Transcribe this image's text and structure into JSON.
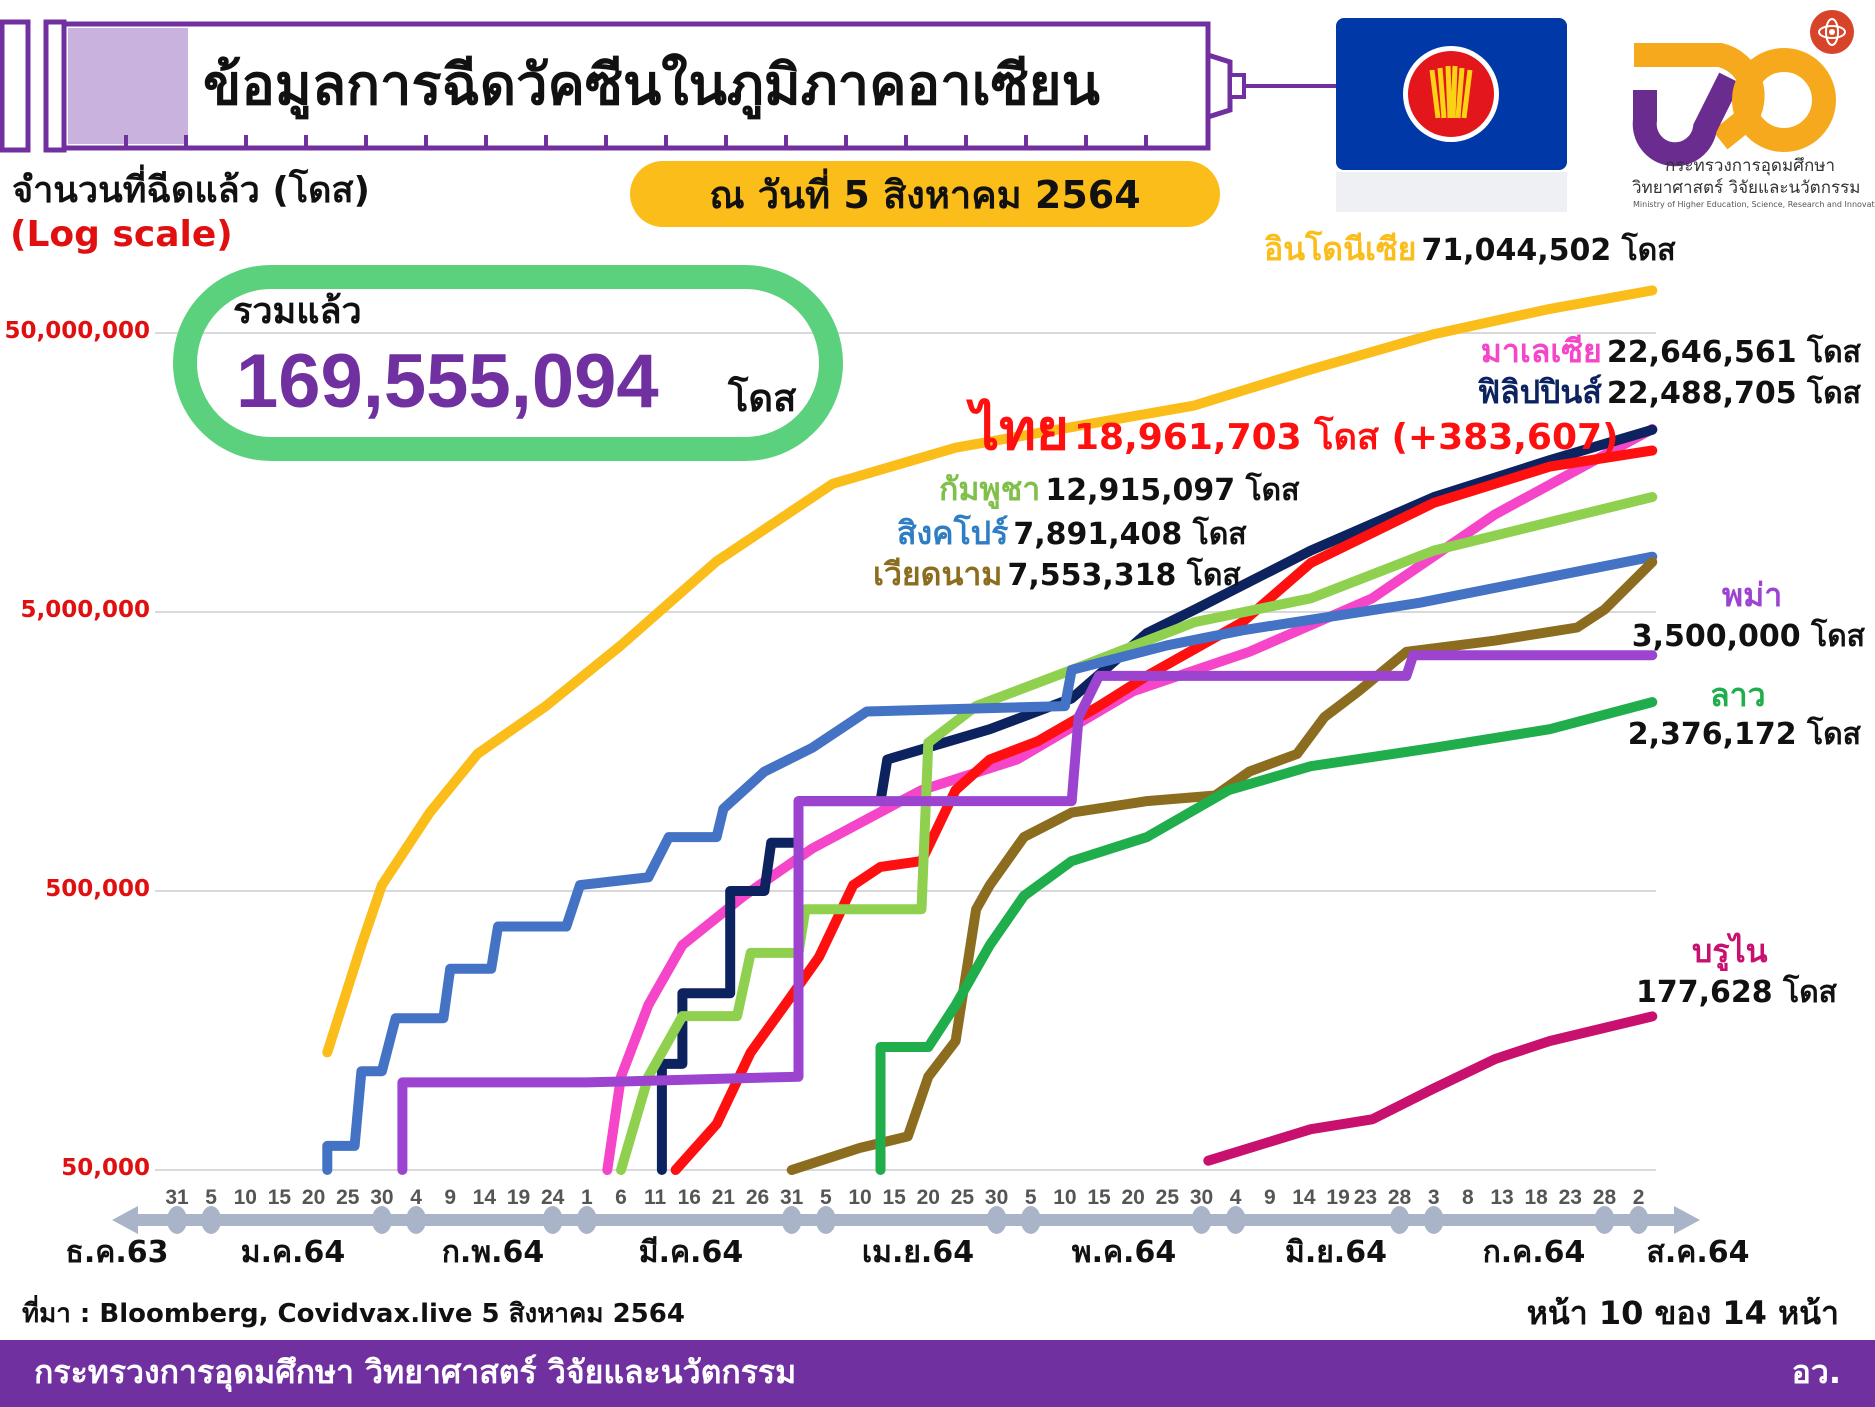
{
  "header": {
    "title": "ข้อมูลการฉีดวัคซีนในภูมิภาคอาเซียน",
    "date_label": "ณ วันที่ 5 สิงหาคม 2564"
  },
  "yaxis": {
    "title": "จำนวนที่ฉีดแล้ว (โดส)",
    "scale_note": "(Log scale)",
    "ticks": [
      {
        "value": 50000000,
        "label": "50,000,000"
      },
      {
        "value": 5000000,
        "label": "5,000,000"
      },
      {
        "value": 500000,
        "label": "500,000"
      },
      {
        "value": 50000,
        "label": "50,000"
      }
    ]
  },
  "total": {
    "label": "รวมแล้ว",
    "value": "169,555,094",
    "unit": "โดส"
  },
  "logo": {
    "ministry_th_1": "กระทรวงการอุดมศึกษา",
    "ministry_th_2": "วิทยาศาสตร์ วิจัยและนวัตกรรม",
    "ministry_en": "Ministry of Higher Education, Science, Research and Innovation"
  },
  "colors": {
    "purple": "#7030a0",
    "yellow": "#fbbd1a",
    "green_pill": "#5bd17e",
    "axis": "#aab4c8",
    "asean_blue": "#0038a8"
  },
  "chart_data": {
    "type": "line",
    "yscale": "log",
    "ylim": [
      50000,
      80000000
    ],
    "grid": true,
    "x_ticks": [
      {
        "date": "2020-12-31",
        "label": "31"
      },
      {
        "date": "2021-01-05",
        "label": "5"
      },
      {
        "date": "2021-01-10",
        "label": "10"
      },
      {
        "date": "2021-01-15",
        "label": "15"
      },
      {
        "date": "2021-01-20",
        "label": "20"
      },
      {
        "date": "2021-01-25",
        "label": "25"
      },
      {
        "date": "2021-01-30",
        "label": "30"
      },
      {
        "date": "2021-02-04",
        "label": "4"
      },
      {
        "date": "2021-02-09",
        "label": "9"
      },
      {
        "date": "2021-02-14",
        "label": "14"
      },
      {
        "date": "2021-02-19",
        "label": "19"
      },
      {
        "date": "2021-02-24",
        "label": "24"
      },
      {
        "date": "2021-03-01",
        "label": "1"
      },
      {
        "date": "2021-03-06",
        "label": "6"
      },
      {
        "date": "2021-03-11",
        "label": "11"
      },
      {
        "date": "2021-03-16",
        "label": "16"
      },
      {
        "date": "2021-03-21",
        "label": "21"
      },
      {
        "date": "2021-03-26",
        "label": "26"
      },
      {
        "date": "2021-03-31",
        "label": "31"
      },
      {
        "date": "2021-04-05",
        "label": "5"
      },
      {
        "date": "2021-04-10",
        "label": "10"
      },
      {
        "date": "2021-04-15",
        "label": "15"
      },
      {
        "date": "2021-04-20",
        "label": "20"
      },
      {
        "date": "2021-04-25",
        "label": "25"
      },
      {
        "date": "2021-04-30",
        "label": "30"
      },
      {
        "date": "2021-05-05",
        "label": "5"
      },
      {
        "date": "2021-05-10",
        "label": "10"
      },
      {
        "date": "2021-05-15",
        "label": "15"
      },
      {
        "date": "2021-05-20",
        "label": "20"
      },
      {
        "date": "2021-05-25",
        "label": "25"
      },
      {
        "date": "2021-05-30",
        "label": "30"
      },
      {
        "date": "2021-06-04",
        "label": "4"
      },
      {
        "date": "2021-06-09",
        "label": "9"
      },
      {
        "date": "2021-06-14",
        "label": "14"
      },
      {
        "date": "2021-06-19",
        "label": "19"
      },
      {
        "date": "2021-06-23",
        "label": "23"
      },
      {
        "date": "2021-06-28",
        "label": "28"
      },
      {
        "date": "2021-07-03",
        "label": "3"
      },
      {
        "date": "2021-07-08",
        "label": "8"
      },
      {
        "date": "2021-07-13",
        "label": "13"
      },
      {
        "date": "2021-07-18",
        "label": "18"
      },
      {
        "date": "2021-07-23",
        "label": "23"
      },
      {
        "date": "2021-07-28",
        "label": "28"
      },
      {
        "date": "2021-08-02",
        "label": "2"
      }
    ],
    "months": [
      "ธ.ค.63",
      "ม.ค.64",
      "ก.พ.64",
      "มี.ค.64",
      "เม.ย.64",
      "พ.ค.64",
      "มิ.ย.64",
      "ก.ค.64",
      "ส.ค.64"
    ],
    "series": [
      {
        "name": "อินโดนีเซีย",
        "total": "71,044,502 โดส",
        "color": "#fbbd1a",
        "points": [
          [
            "2021-01-22",
            132000
          ],
          [
            "2021-01-27",
            320000
          ],
          [
            "2021-01-30",
            525000
          ],
          [
            "2021-02-06",
            955000
          ],
          [
            "2021-02-13",
            1550000
          ],
          [
            "2021-02-23",
            2300000
          ],
          [
            "2021-03-06",
            3800000
          ],
          [
            "2021-03-20",
            7600000
          ],
          [
            "2021-04-06",
            14400000
          ],
          [
            "2021-04-24",
            19400000
          ],
          [
            "2021-05-11",
            23000000
          ],
          [
            "2021-05-29",
            27500000
          ],
          [
            "2021-06-15",
            37000000
          ],
          [
            "2021-07-03",
            49500000
          ],
          [
            "2021-07-20",
            61000000
          ],
          [
            "2021-08-04",
            71044502
          ]
        ]
      },
      {
        "name": "มาเลเซีย",
        "total": "22,646,561 โดส",
        "color": "#f545c8",
        "points": [
          [
            "2021-03-04",
            50000
          ],
          [
            "2021-03-06",
            108000
          ],
          [
            "2021-03-10",
            195000
          ],
          [
            "2021-03-15",
            320000
          ],
          [
            "2021-03-24",
            480000
          ],
          [
            "2021-04-03",
            710000
          ],
          [
            "2021-04-19",
            1150000
          ],
          [
            "2021-05-03",
            1480000
          ],
          [
            "2021-05-20",
            2600000
          ],
          [
            "2021-06-06",
            3600000
          ],
          [
            "2021-06-24",
            5600000
          ],
          [
            "2021-07-12",
            11200000
          ],
          [
            "2021-08-04",
            22646561
          ]
        ]
      },
      {
        "name": "ฟิลิปปินส์",
        "total": "22,488,705 โดส",
        "color": "#0d2360",
        "points": [
          [
            "2021-03-12",
            50000
          ],
          [
            "2021-03-12",
            120000
          ],
          [
            "2021-03-15",
            120000
          ],
          [
            "2021-03-15",
            215000
          ],
          [
            "2021-03-22",
            215000
          ],
          [
            "2021-03-22",
            500000
          ],
          [
            "2021-03-27",
            500000
          ],
          [
            "2021-03-28",
            745000
          ],
          [
            "2021-04-01",
            745000
          ],
          [
            "2021-04-01",
            1050000
          ],
          [
            "2021-04-13",
            1050000
          ],
          [
            "2021-04-14",
            1480000
          ],
          [
            "2021-04-29",
            1900000
          ],
          [
            "2021-05-11",
            2450000
          ],
          [
            "2021-05-22",
            4200000
          ],
          [
            "2021-05-29",
            5100000
          ],
          [
            "2021-06-15",
            8300000
          ],
          [
            "2021-07-03",
            12900000
          ],
          [
            "2021-07-20",
            17500000
          ],
          [
            "2021-08-04",
            22488705
          ]
        ]
      },
      {
        "name": "ไทย",
        "total": "18,961,703 โดส (+383,607)",
        "color": "#ff1010",
        "points": [
          [
            "2021-03-14",
            50000
          ],
          [
            "2021-03-20",
            73000
          ],
          [
            "2021-03-25",
            132000
          ],
          [
            "2021-03-30",
            195000
          ],
          [
            "2021-04-04",
            290000
          ],
          [
            "2021-04-09",
            525000
          ],
          [
            "2021-04-13",
            610000
          ],
          [
            "2021-04-19",
            640000
          ],
          [
            "2021-04-24",
            1150000
          ],
          [
            "2021-04-29",
            1480000
          ],
          [
            "2021-05-06",
            1720000
          ],
          [
            "2021-05-15",
            2300000
          ],
          [
            "2021-05-22",
            2950000
          ],
          [
            "2021-06-05",
            4600000
          ],
          [
            "2021-06-15",
            7500000
          ],
          [
            "2021-07-03",
            12300000
          ],
          [
            "2021-07-20",
            16600000
          ],
          [
            "2021-08-04",
            18961703
          ]
        ]
      },
      {
        "name": "กัมพูชา",
        "total": "12,915,097 โดส",
        "color": "#8fd14f",
        "points": [
          [
            "2021-03-06",
            50000
          ],
          [
            "2021-03-10",
            108000
          ],
          [
            "2021-03-15",
            178000
          ],
          [
            "2021-03-23",
            178000
          ],
          [
            "2021-03-25",
            300000
          ],
          [
            "2021-04-01",
            300000
          ],
          [
            "2021-04-02",
            430000
          ],
          [
            "2021-04-19",
            430000
          ],
          [
            "2021-04-20",
            1700000
          ],
          [
            "2021-04-27",
            2300000
          ],
          [
            "2021-05-11",
            3100000
          ],
          [
            "2021-05-29",
            4600000
          ],
          [
            "2021-06-15",
            5600000
          ],
          [
            "2021-07-03",
            8300000
          ],
          [
            "2021-08-04",
            12915097
          ]
        ]
      },
      {
        "name": "สิงคโปร์",
        "total": "7,891,408 โดส",
        "color": "#4472c4",
        "points": [
          [
            "2021-01-22",
            50000
          ],
          [
            "2021-01-22",
            61000
          ],
          [
            "2021-01-26",
            61000
          ],
          [
            "2021-01-27",
            113000
          ],
          [
            "2021-01-30",
            113000
          ],
          [
            "2021-02-01",
            175000
          ],
          [
            "2021-02-08",
            175000
          ],
          [
            "2021-02-09",
            263000
          ],
          [
            "2021-02-15",
            263000
          ],
          [
            "2021-02-16",
            373000
          ],
          [
            "2021-02-26",
            373000
          ],
          [
            "2021-02-28",
            525000
          ],
          [
            "2021-03-10",
            560000
          ],
          [
            "2021-03-13",
            780000
          ],
          [
            "2021-03-20",
            780000
          ],
          [
            "2021-03-21",
            985000
          ],
          [
            "2021-03-27",
            1340000
          ],
          [
            "2021-04-03",
            1630000
          ],
          [
            "2021-04-11",
            2200000
          ],
          [
            "2021-05-10",
            2300000
          ],
          [
            "2021-05-11",
            3100000
          ],
          [
            "2021-05-25",
            3800000
          ],
          [
            "2021-06-05",
            4300000
          ],
          [
            "2021-07-01",
            5400000
          ],
          [
            "2021-08-04",
            7891408
          ]
        ]
      },
      {
        "name": "เวียดนาม",
        "total": "7,553,318 โดส",
        "color": "#8c6d1f",
        "points": [
          [
            "2021-03-31",
            50000
          ],
          [
            "2021-04-10",
            60000
          ],
          [
            "2021-04-17",
            66000
          ],
          [
            "2021-04-20",
            108000
          ],
          [
            "2021-04-24",
            145000
          ],
          [
            "2021-04-27",
            430000
          ],
          [
            "2021-04-29",
            525000
          ],
          [
            "2021-05-04",
            780000
          ],
          [
            "2021-05-11",
            955000
          ],
          [
            "2021-05-22",
            1050000
          ],
          [
            "2021-06-01",
            1100000
          ],
          [
            "2021-06-06",
            1340000
          ],
          [
            "2021-06-13",
            1550000
          ],
          [
            "2021-06-17",
            2100000
          ],
          [
            "2021-06-22",
            2600000
          ],
          [
            "2021-06-29",
            3600000
          ],
          [
            "2021-07-12",
            3950000
          ],
          [
            "2021-07-24",
            4400000
          ],
          [
            "2021-07-28",
            5100000
          ],
          [
            "2021-08-04",
            7553318
          ]
        ]
      },
      {
        "name": "พม่า",
        "total": "3,500,000 โดส",
        "color": "#9c44d0",
        "points": [
          [
            "2021-02-02",
            50000
          ],
          [
            "2021-02-02",
            103000
          ],
          [
            "2021-03-01",
            103000
          ],
          [
            "2021-04-01",
            108000
          ],
          [
            "2021-04-01",
            1050000
          ],
          [
            "2021-05-11",
            1050000
          ],
          [
            "2021-05-12",
            2100000
          ],
          [
            "2021-05-15",
            2950000
          ],
          [
            "2021-06-29",
            2950000
          ],
          [
            "2021-06-30",
            3500000
          ],
          [
            "2021-08-04",
            3500000
          ]
        ]
      },
      {
        "name": "ลาว",
        "total": "2,376,172 โดส",
        "color": "#1fae4b",
        "points": [
          [
            "2021-04-13",
            50000
          ],
          [
            "2021-04-13",
            138000
          ],
          [
            "2021-04-20",
            138000
          ],
          [
            "2021-04-24",
            195000
          ],
          [
            "2021-04-29",
            320000
          ],
          [
            "2021-05-04",
            480000
          ],
          [
            "2021-05-11",
            640000
          ],
          [
            "2021-05-22",
            780000
          ],
          [
            "2021-06-03",
            1150000
          ],
          [
            "2021-06-15",
            1400000
          ],
          [
            "2021-07-03",
            1630000
          ],
          [
            "2021-07-20",
            1900000
          ],
          [
            "2021-08-04",
            2376172
          ]
        ]
      },
      {
        "name": "บรูไน",
        "total": "177,628 โดส",
        "color": "#c8106e",
        "points": [
          [
            "2021-05-31",
            54000
          ],
          [
            "2021-06-15",
            70000
          ],
          [
            "2021-06-24",
            76000
          ],
          [
            "2021-07-03",
            98000
          ],
          [
            "2021-07-12",
            125000
          ],
          [
            "2021-07-20",
            145000
          ],
          [
            "2021-08-04",
            177628
          ]
        ]
      }
    ]
  },
  "footer": {
    "source": "ที่มา : Bloomberg, Covidvax.live 5 สิงหาคม 2564",
    "page": "หน้า 10 ของ 14 หน้า",
    "band_text": "กระทรวงการอุดมศึกษา วิทยาศาสตร์ วิจัยและนวัตกรรม",
    "band_abbr": "อว."
  }
}
